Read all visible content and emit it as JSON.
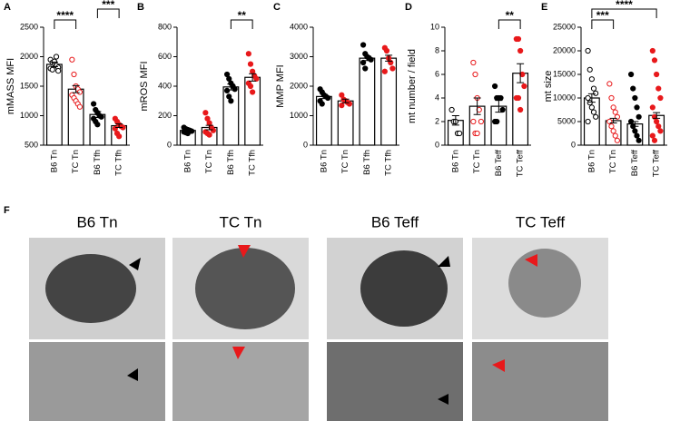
{
  "chart_data": [
    {
      "type": "bar",
      "panel": "A",
      "ylabel": "mMASS MFI",
      "categories": [
        "B6 Tn",
        "TC Tn",
        "B6 Tfh",
        "TC Tfh"
      ],
      "values": [
        1870,
        1450,
        1020,
        830
      ],
      "errors": [
        40,
        60,
        50,
        30
      ],
      "colors": [
        "#000000",
        "#e8191b",
        "#000000",
        "#e8191b"
      ],
      "open": [
        true,
        true,
        false,
        false
      ],
      "points": [
        [
          1950,
          1900,
          1880,
          1850,
          1820,
          1800,
          1780,
          1920,
          2000,
          1760
        ],
        [
          1950,
          1700,
          1500,
          1450,
          1400,
          1350,
          1300,
          1250,
          1200,
          1150
        ],
        [
          1200,
          1100,
          1050,
          1000,
          980,
          950,
          900,
          850
        ],
        [
          950,
          900,
          850,
          820,
          800,
          780,
          700,
          650
        ]
      ],
      "ylim": [
        500,
        2500
      ],
      "yticks": [
        500,
        1000,
        1500,
        2000,
        2500
      ],
      "brackets": [
        {
          "from": 0,
          "to": 1,
          "label": "****"
        },
        {
          "from": 2,
          "to": 3,
          "label": "***"
        }
      ]
    },
    {
      "type": "bar",
      "panel": "B",
      "ylabel": "mROS MFI",
      "categories": [
        "B6 Tn",
        "TC Tn",
        "B6 Tfh",
        "TC Tfh"
      ],
      "values": [
        100,
        120,
        395,
        460
      ],
      "errors": [
        8,
        15,
        20,
        25
      ],
      "colors": [
        "#000000",
        "#e8191b",
        "#000000",
        "#e8191b"
      ],
      "open": [
        false,
        false,
        false,
        false
      ],
      "points": [
        [
          120,
          110,
          105,
          100,
          95,
          90,
          85,
          80
        ],
        [
          220,
          180,
          150,
          120,
          100,
          90,
          80,
          70
        ],
        [
          480,
          450,
          420,
          400,
          380,
          370,
          330,
          300
        ],
        [
          620,
          550,
          500,
          470,
          450,
          420,
          400,
          360
        ]
      ],
      "ylim": [
        0,
        800
      ],
      "yticks": [
        0,
        200,
        400,
        600,
        800
      ],
      "brackets": [
        {
          "from": 2,
          "to": 3,
          "label": "**"
        }
      ]
    },
    {
      "type": "bar",
      "panel": "C",
      "ylabel": "MMP MFI",
      "categories": [
        "B6 Tn",
        "TC Tn",
        "B6 Tfh",
        "TC Tfh"
      ],
      "values": [
        1650,
        1500,
        2950,
        2950
      ],
      "errors": [
        70,
        60,
        80,
        100
      ],
      "colors": [
        "#000000",
        "#e8191b",
        "#000000",
        "#e8191b"
      ],
      "open": [
        false,
        false,
        false,
        false
      ],
      "points": [
        [
          1900,
          1800,
          1700,
          1650,
          1600,
          1500,
          1400
        ],
        [
          1700,
          1550,
          1500,
          1450,
          1400,
          1350
        ],
        [
          3400,
          3100,
          3000,
          2950,
          2900,
          2800,
          2600
        ],
        [
          3300,
          3200,
          2950,
          2800,
          2600,
          2500
        ]
      ],
      "ylim": [
        0,
        4000
      ],
      "yticks": [
        0,
        1000,
        2000,
        3000,
        4000
      ],
      "brackets": []
    },
    {
      "type": "bar",
      "panel": "D",
      "ylabel": "mt number / field",
      "categories": [
        "B6 Tn",
        "TC Tn",
        "B6 Teff",
        "TC Teff"
      ],
      "values": [
        2.1,
        3.3,
        3.3,
        6.1
      ],
      "errors": [
        0.4,
        0.7,
        0.5,
        0.8
      ],
      "colors": [
        "#000000",
        "#e8191b",
        "#000000",
        "#e8191b"
      ],
      "open": [
        true,
        true,
        false,
        false
      ],
      "points": [
        [
          3,
          2,
          2,
          1,
          1
        ],
        [
          7,
          6,
          4,
          3,
          2,
          2,
          1,
          1
        ],
        [
          5,
          4,
          4,
          4,
          3,
          2,
          2
        ],
        [
          9,
          9,
          8,
          6,
          5,
          4,
          4,
          3
        ]
      ],
      "ylim": [
        0,
        10
      ],
      "yticks": [
        0,
        2,
        4,
        6,
        8,
        10
      ],
      "brackets": [
        {
          "from": 2,
          "to": 3,
          "label": "**"
        }
      ]
    },
    {
      "type": "bar",
      "panel": "E",
      "ylabel": "mt size",
      "categories": [
        "B6 Tn",
        "TC Tn",
        "B6 Teff",
        "TC Teff"
      ],
      "values": [
        10000,
        5200,
        4500,
        6300
      ],
      "errors": [
        900,
        500,
        500,
        600
      ],
      "colors": [
        "#000000",
        "#e8191b",
        "#000000",
        "#e8191b"
      ],
      "open": [
        true,
        true,
        false,
        false
      ],
      "points": [
        [
          20000,
          16000,
          14000,
          12000,
          11000,
          10000,
          9000,
          8000,
          7000,
          6000,
          5000
        ],
        [
          13000,
          10000,
          8000,
          7000,
          6000,
          5000,
          4000,
          3000,
          2000,
          1000
        ],
        [
          15000,
          12000,
          10000,
          8000,
          6000,
          5000,
          4000,
          3000,
          2000,
          1000
        ],
        [
          20000,
          18000,
          15000,
          12000,
          10000,
          8000,
          6000,
          5000,
          4000,
          3000,
          2000,
          1000
        ]
      ],
      "ylim": [
        0,
        25000
      ],
      "yticks": [
        0,
        5000,
        10000,
        15000,
        20000,
        25000
      ],
      "brackets": [
        {
          "from": 0,
          "to": 1,
          "label": "***"
        },
        {
          "from": 0,
          "to": 3,
          "label": "****"
        }
      ]
    }
  ],
  "image_panel": {
    "label": "F",
    "columns": [
      "B6 Tn",
      "TC Tn",
      "B6 Teff",
      "TC Teff"
    ]
  }
}
